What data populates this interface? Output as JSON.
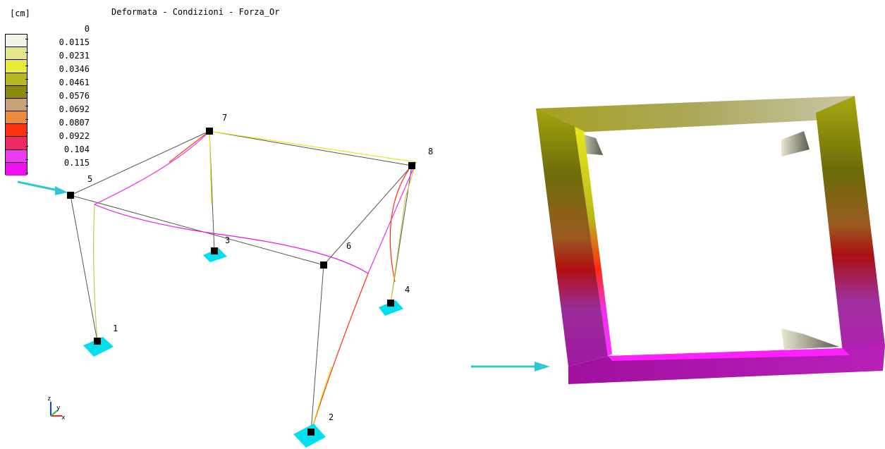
{
  "header": {
    "unit": "[cm]",
    "title": "Deformata - Condizioni - Forza_Or"
  },
  "legend": {
    "labels": [
      "0",
      "0.0115",
      "0.0231",
      "0.0346",
      "0.0461",
      "0.0576",
      "0.0692",
      "0.0807",
      "0.0922",
      "0.104",
      "0.115"
    ],
    "colors": [
      "#f2f2e6",
      "#e5e58c",
      "#eaea3a",
      "#b8b822",
      "#8a8a10",
      "#c8a07a",
      "#ee8a3c",
      "#ff3010",
      "#ee2a66",
      "#ee3aee",
      "#ee10ee"
    ]
  },
  "model_left": {
    "nodes": [
      "1",
      "2",
      "3",
      "4",
      "5",
      "6",
      "7",
      "8"
    ],
    "colors": {
      "undeformed": "#555555",
      "deformed_max": "#ff00ff",
      "support": "#00e0ee",
      "node": "#000000"
    }
  },
  "axes_triad": {
    "z": "z",
    "y": "y",
    "x": "x"
  },
  "colors": {
    "arrow": "#30c8d0"
  }
}
